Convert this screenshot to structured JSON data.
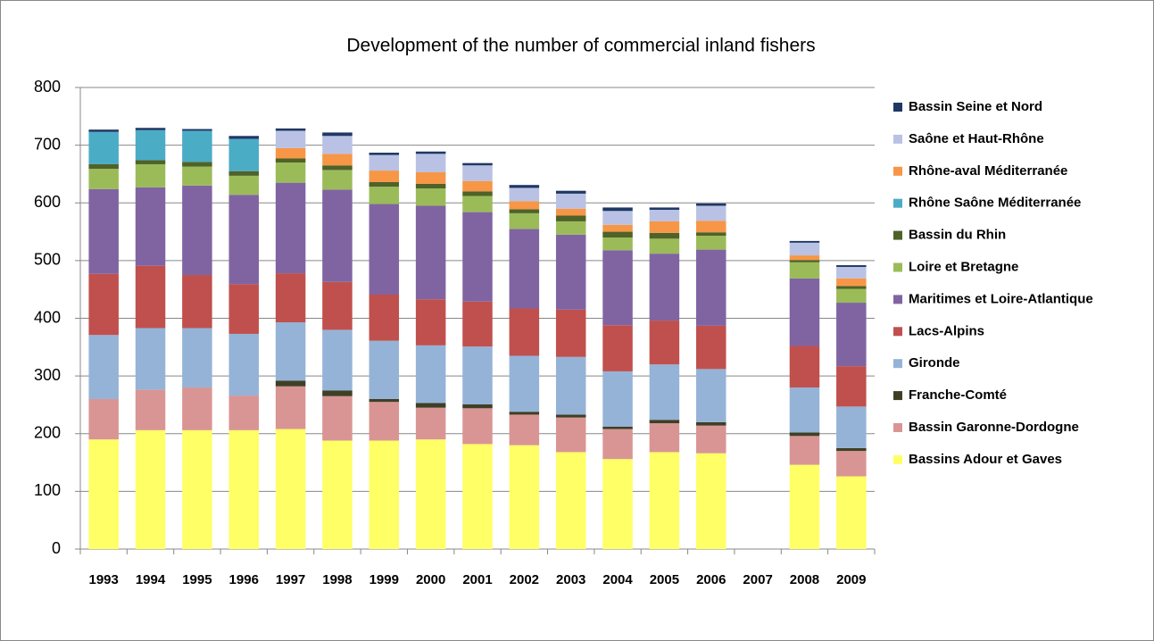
{
  "chart_data": {
    "type": "bar",
    "stacked": true,
    "title": "Development of the number of commercial inland fishers",
    "categories": [
      "1993",
      "1994",
      "1995",
      "1996",
      "1997",
      "1998",
      "1999",
      "2000",
      "2001",
      "2002",
      "2003",
      "2004",
      "2005",
      "2006",
      "2007",
      "2008",
      "2009"
    ],
    "ylim": [
      0,
      800
    ],
    "yticks": [
      0,
      100,
      200,
      300,
      400,
      500,
      600,
      700,
      800
    ],
    "grid": true,
    "legend": "right",
    "series": [
      {
        "name": "Bassins Adour et Gaves",
        "color": "#ffff66",
        "values": [
          190,
          206,
          206,
          206,
          208,
          188,
          188,
          190,
          182,
          180,
          168,
          156,
          168,
          166,
          null,
          146,
          126
        ]
      },
      {
        "name": "Bassin Garonne-Dordogne",
        "color": "#d99594",
        "values": [
          70,
          70,
          74,
          60,
          74,
          77,
          67,
          55,
          62,
          53,
          60,
          52,
          50,
          48,
          null,
          50,
          44
        ]
      },
      {
        "name": "Franche-Comté",
        "color": "#3f3f26",
        "values": [
          0,
          0,
          0,
          0,
          10,
          10,
          5,
          8,
          7,
          5,
          5,
          4,
          6,
          6,
          null,
          6,
          5
        ]
      },
      {
        "name": "Gironde",
        "color": "#95b3d7",
        "values": [
          111,
          107,
          103,
          107,
          101,
          105,
          101,
          100,
          100,
          97,
          100,
          96,
          96,
          92,
          null,
          78,
          72
        ]
      },
      {
        "name": "Lacs-Alpins",
        "color": "#c0504d",
        "values": [
          106,
          108,
          92,
          86,
          85,
          83,
          80,
          80,
          78,
          82,
          82,
          80,
          76,
          75,
          null,
          72,
          70
        ]
      },
      {
        "name": "Maritimes et Loire-Atlantique",
        "color": "#8064a2",
        "values": [
          147,
          136,
          155,
          155,
          157,
          160,
          157,
          162,
          155,
          138,
          130,
          130,
          116,
          132,
          null,
          117,
          110
        ]
      },
      {
        "name": "Loire et Bretagne",
        "color": "#9bbb59",
        "values": [
          35,
          40,
          33,
          33,
          35,
          34,
          30,
          30,
          28,
          27,
          23,
          22,
          26,
          24,
          null,
          28,
          24
        ]
      },
      {
        "name": "Bassin du Rhin",
        "color": "#4f6228",
        "values": [
          8,
          7,
          8,
          8,
          7,
          8,
          8,
          8,
          8,
          7,
          10,
          10,
          10,
          6,
          null,
          4,
          5
        ]
      },
      {
        "name": "Rhône Saône Méditerranée",
        "color": "#4bacc6",
        "values": [
          56,
          52,
          54,
          56,
          0,
          0,
          0,
          0,
          0,
          0,
          0,
          0,
          0,
          0,
          null,
          0,
          0
        ]
      },
      {
        "name": "Rhône-aval Méditerranée",
        "color": "#f79646",
        "values": [
          0,
          0,
          0,
          0,
          18,
          20,
          20,
          20,
          18,
          14,
          12,
          12,
          20,
          20,
          null,
          8,
          13
        ]
      },
      {
        "name": "Saône et Haut-Rhône",
        "color": "#b9c2e4",
        "values": [
          0,
          0,
          0,
          0,
          30,
          31,
          27,
          32,
          27,
          23,
          26,
          24,
          20,
          26,
          null,
          22,
          20
        ]
      },
      {
        "name": "Bassin Seine et Nord",
        "color": "#1f3864",
        "values": [
          4,
          4,
          3,
          5,
          4,
          6,
          4,
          4,
          4,
          5,
          5,
          6,
          4,
          4,
          null,
          3,
          3
        ]
      }
    ]
  }
}
